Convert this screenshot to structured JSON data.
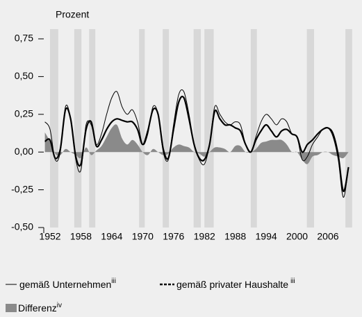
{
  "chart_data": {
    "type": "line",
    "y_axis_label": "Prozent",
    "x": [
      1951,
      1952,
      1953,
      1954,
      1955,
      1956,
      1957,
      1958,
      1959,
      1960,
      1961,
      1962,
      1963,
      1964,
      1965,
      1966,
      1967,
      1968,
      1969,
      1970,
      1971,
      1972,
      1973,
      1974,
      1975,
      1976,
      1977,
      1978,
      1979,
      1980,
      1981,
      1982,
      1983,
      1984,
      1985,
      1986,
      1987,
      1988,
      1989,
      1990,
      1991,
      1992,
      1993,
      1994,
      1995,
      1996,
      1997,
      1998,
      1999,
      2000,
      2001,
      2002,
      2003,
      2004,
      2005,
      2006,
      2007,
      2008,
      2009,
      2010
    ],
    "series": [
      {
        "name": "Differenz",
        "footnote": "iv",
        "type": "area",
        "color": "#8a8a8a",
        "values": [
          0.13,
          0.07,
          -0.01,
          -0.02,
          0.02,
          0,
          -0.02,
          -0.04,
          0.03,
          -0.02,
          0.01,
          0.04,
          0.1,
          0.16,
          0.18,
          0.09,
          0.05,
          0.08,
          0.05,
          0,
          -0.02,
          0.02,
          0,
          -0.02,
          -0.01,
          0.03,
          0.05,
          0.04,
          0.03,
          0,
          -0.01,
          -0.03,
          0,
          0.03,
          0.03,
          0.02,
          0,
          0.04,
          0.04,
          0,
          0,
          0.02,
          0.06,
          0.07,
          0.08,
          0.08,
          0.08,
          0.05,
          0,
          0,
          -0.05,
          -0.08,
          -0.03,
          -0.02,
          0,
          0,
          -0.02,
          -0.03,
          -0.04,
          0
        ]
      },
      {
        "name": "gemäß Unternehmen",
        "footnote": "iii",
        "type": "line",
        "color": "#000000",
        "values": [
          0.2,
          0.15,
          -0.05,
          0.0,
          0.3,
          0.22,
          -0.05,
          -0.12,
          0.18,
          0.18,
          0.05,
          0.12,
          0.25,
          0.36,
          0.4,
          0.3,
          0.25,
          0.28,
          0.2,
          0.05,
          0.12,
          0.3,
          0.25,
          0.0,
          -0.05,
          0.18,
          0.38,
          0.4,
          0.25,
          0.05,
          -0.05,
          -0.08,
          0.05,
          0.3,
          0.25,
          0.2,
          0.18,
          0.2,
          0.18,
          0.05,
          0.0,
          0.1,
          0.2,
          0.25,
          0.22,
          0.18,
          0.22,
          0.2,
          0.12,
          0.1,
          -0.05,
          -0.03,
          0.05,
          0.1,
          0.15,
          0.16,
          0.1,
          -0.05,
          -0.3,
          -0.1
        ]
      },
      {
        "name": "gemäß privater Haushalte",
        "footnote": "iii",
        "type": "line",
        "color": "#000000",
        "values": [
          0.07,
          0.08,
          -0.04,
          0.02,
          0.28,
          0.22,
          -0.03,
          -0.08,
          0.15,
          0.2,
          0.04,
          0.08,
          0.15,
          0.2,
          0.22,
          0.21,
          0.2,
          0.2,
          0.15,
          0.05,
          0.14,
          0.28,
          0.25,
          0.02,
          -0.04,
          0.15,
          0.33,
          0.36,
          0.22,
          0.05,
          -0.04,
          -0.05,
          0.05,
          0.27,
          0.22,
          0.18,
          0.18,
          0.16,
          0.14,
          0.05,
          0.0,
          0.08,
          0.14,
          0.18,
          0.14,
          0.1,
          0.14,
          0.15,
          0.12,
          0.1,
          0.0,
          0.05,
          0.08,
          0.12,
          0.15,
          0.16,
          0.12,
          -0.02,
          -0.26,
          -0.1
        ]
      }
    ],
    "shaded_periods": [
      [
        1952,
        1953.6
      ],
      [
        1956.7,
        1958.1
      ],
      [
        1959.6,
        1960.8
      ],
      [
        1969.3,
        1970.4
      ],
      [
        1973.9,
        1975.1
      ],
      [
        1979.9,
        1981.3
      ],
      [
        1982,
        1983.8
      ],
      [
        1991,
        1992.2
      ],
      [
        2001.9,
        2003.3
      ],
      [
        2009.4,
        2010.7
      ]
    ],
    "shade_color": "#d8d8d8",
    "xlim": [
      1951,
      2011
    ],
    "xticks": [
      1952,
      1958,
      1964,
      1970,
      1976,
      1982,
      1988,
      1994,
      2000,
      2006
    ],
    "ylim": [
      -0.5,
      0.75
    ],
    "yticks": [
      {
        "value": -0.5,
        "label": "-0,50"
      },
      {
        "value": -0.25,
        "label": "-0,25"
      },
      {
        "value": 0,
        "label": "0,00"
      },
      {
        "value": 0.25,
        "label": "0,25"
      },
      {
        "value": 0.5,
        "label": "0,50"
      },
      {
        "value": 0.75,
        "label": "0,75"
      }
    ]
  }
}
